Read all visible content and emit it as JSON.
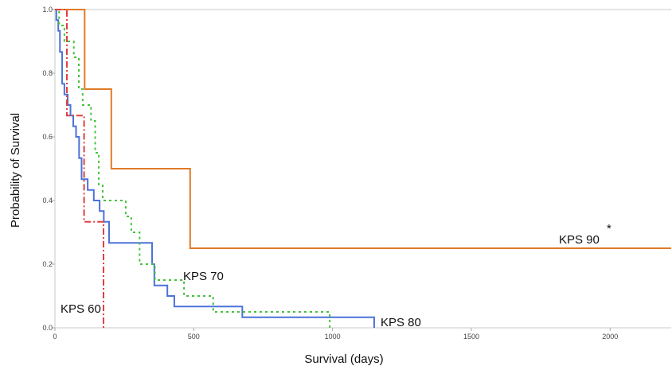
{
  "chart_data": {
    "type": "line",
    "step": true,
    "title": "",
    "xlabel": "Survival (days)",
    "ylabel": "Probability of Survival",
    "xlim": [
      0,
      2220
    ],
    "ylim": [
      0,
      1.0
    ],
    "x_ticks": [
      0,
      500,
      1000,
      1500,
      2000
    ],
    "x_tick_labels": [
      "0",
      "500",
      "1000",
      "1500",
      "2000"
    ],
    "y_ticks": [
      0,
      0.2,
      0.4,
      0.6,
      0.8,
      1.0
    ],
    "y_tick_labels": [
      "0.0",
      "0.2",
      "0.4",
      "0.6",
      "0.8",
      "1.0"
    ],
    "grid": false,
    "annotation": "*",
    "series": [
      {
        "name": "KPS 90",
        "color": "#E07B28",
        "dash": "solid",
        "x": [
          0,
          107,
          203,
          487,
          2220
        ],
        "y": [
          1.0,
          0.75,
          0.5,
          0.25,
          0.25
        ]
      },
      {
        "name": "KPS 80",
        "color": "#4A72D9",
        "dash": "solid",
        "x": [
          0,
          5,
          12,
          18,
          26,
          34,
          46,
          56,
          66,
          76,
          87,
          96,
          118,
          140,
          161,
          176,
          195,
          350,
          358,
          405,
          430,
          675,
          1150
        ],
        "y": [
          1.0,
          0.967,
          0.933,
          0.867,
          0.767,
          0.733,
          0.7,
          0.667,
          0.633,
          0.6,
          0.533,
          0.467,
          0.433,
          0.4,
          0.367,
          0.333,
          0.267,
          0.2,
          0.133,
          0.1,
          0.067,
          0.033,
          0.0
        ]
      },
      {
        "name": "KPS 70",
        "color": "#44C23A",
        "dash": "dotted",
        "x": [
          0,
          15,
          34,
          68,
          86,
          100,
          130,
          145,
          158,
          172,
          255,
          275,
          305,
          360,
          465,
          570,
          990
        ],
        "y": [
          1.0,
          0.95,
          0.9,
          0.85,
          0.75,
          0.7,
          0.65,
          0.55,
          0.45,
          0.4,
          0.35,
          0.3,
          0.2,
          0.15,
          0.1,
          0.05,
          0.0
        ]
      },
      {
        "name": "KPS 60",
        "color": "#E04040",
        "dash": "dashdot",
        "x": [
          0,
          38,
          43,
          105,
          175
        ],
        "y": [
          1.0,
          1.0,
          0.667,
          0.333,
          0.0
        ]
      }
    ]
  }
}
